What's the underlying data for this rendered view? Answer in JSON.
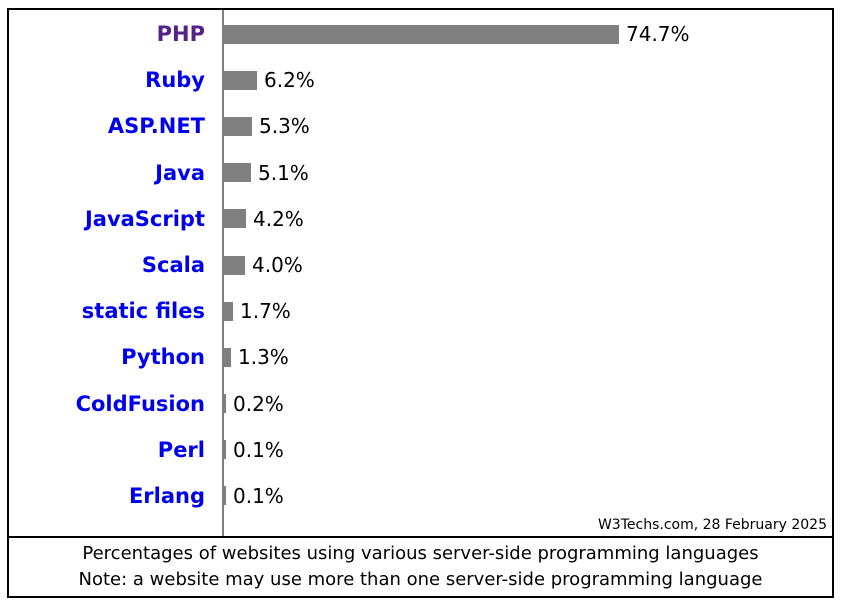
{
  "meta": {
    "source_credit": "W3Techs.com, 28 February 2025"
  },
  "caption": {
    "line1": "Percentages of websites using various server-side programming languages",
    "line2": "Note: a website may use more than one server-side programming language"
  },
  "colors": {
    "bar_color": "#808080",
    "axis_color": "#808080",
    "link_color": "#0000EE",
    "highlight_color": "#552288",
    "border_color": "#000000",
    "text_color": "#000000",
    "background_color": "#ffffff"
  },
  "chart_data": {
    "type": "bar",
    "orientation": "horizontal",
    "title": "",
    "xlabel": "",
    "ylabel": "",
    "grid": false,
    "legend": false,
    "categories": [
      "PHP",
      "Ruby",
      "ASP.NET",
      "Java",
      "JavaScript",
      "Scala",
      "static files",
      "Python",
      "ColdFusion",
      "Perl",
      "Erlang"
    ],
    "values": [
      74.7,
      6.2,
      5.3,
      5.1,
      4.2,
      4.0,
      1.7,
      1.3,
      0.2,
      0.1,
      0.1
    ],
    "value_labels": [
      "74.7%",
      "6.2%",
      "5.3%",
      "5.1%",
      "4.2%",
      "4.0%",
      "1.7%",
      "1.3%",
      "0.2%",
      "0.1%",
      "0.1%"
    ],
    "highlighted_category": "PHP"
  }
}
